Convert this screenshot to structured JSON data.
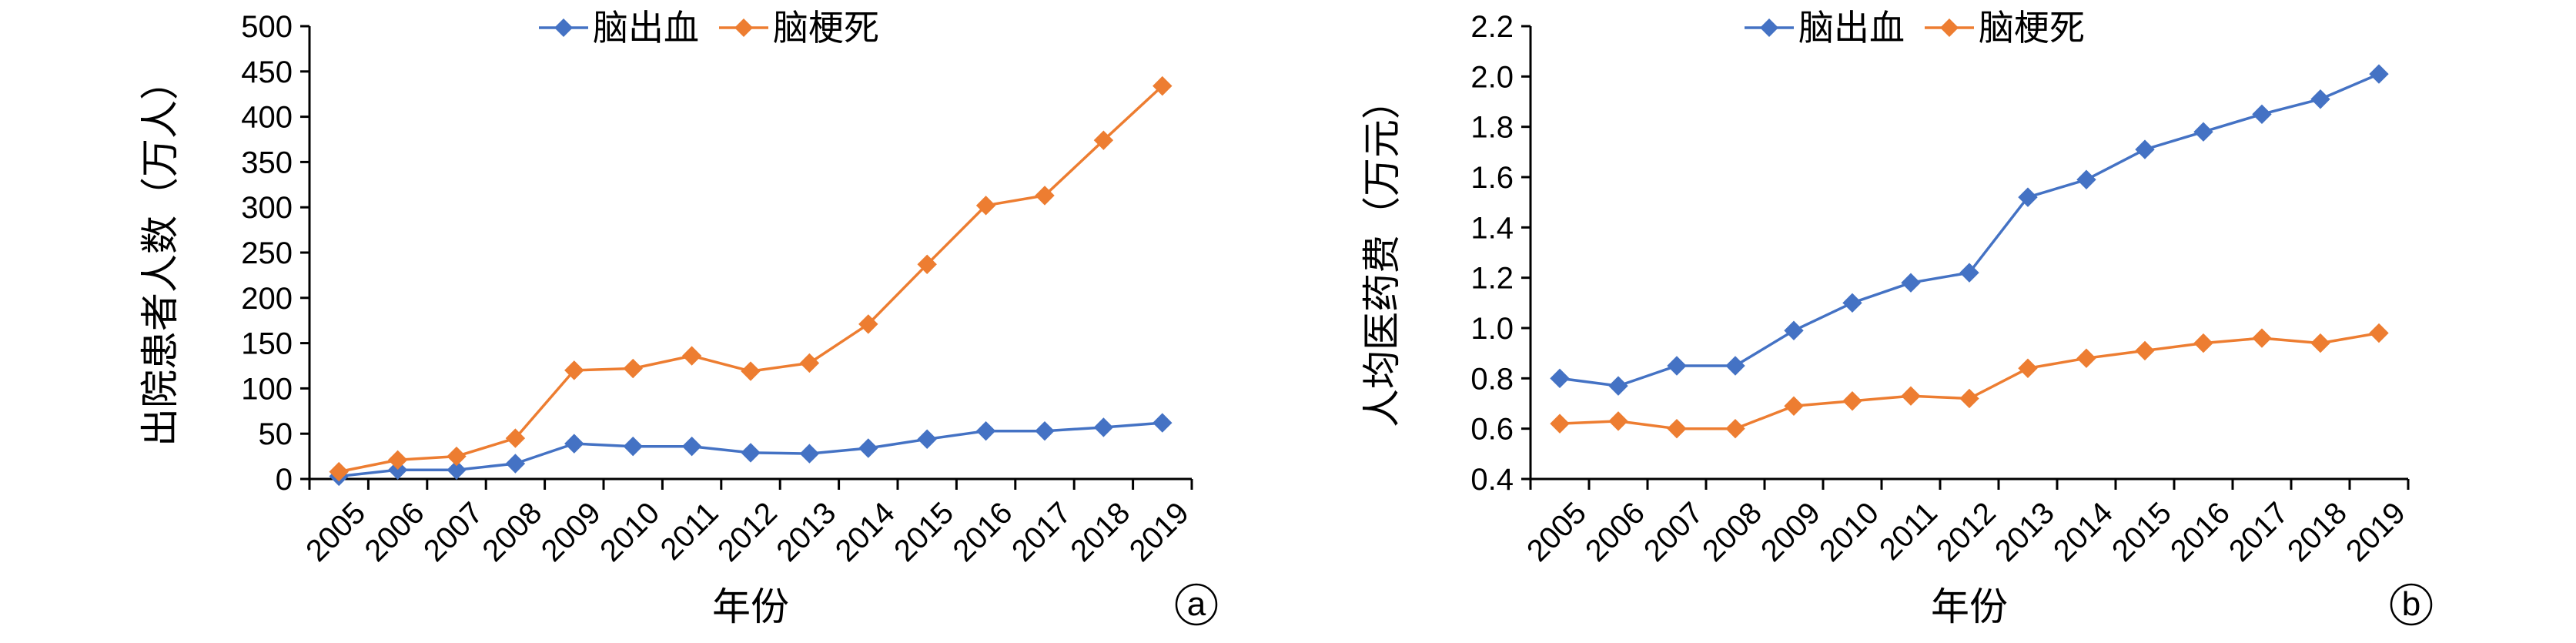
{
  "colors": {
    "series_blue": "#4472C4",
    "series_orange": "#ED7D31",
    "axis": "#000000"
  },
  "chart_data": [
    {
      "type": "line",
      "panel_label": "a",
      "xlabel": "年份",
      "ylabel": "出院患者人数（万人）",
      "categories": [
        "2005",
        "2006",
        "2007",
        "2008",
        "2009",
        "2010",
        "2011",
        "2012",
        "2013",
        "2014",
        "2015",
        "2016",
        "2017",
        "2018",
        "2019"
      ],
      "ylim": [
        0,
        500
      ],
      "yticks": [
        "0",
        "50",
        "100",
        "150",
        "200",
        "250",
        "300",
        "350",
        "400",
        "450",
        "500"
      ],
      "legend_position": "top-center",
      "grid": false,
      "series": [
        {
          "name": "脑出血",
          "color": "#4472C4",
          "marker": "diamond",
          "values": [
            3,
            10,
            10,
            17,
            39,
            36,
            36,
            29,
            28,
            34,
            44,
            53,
            53,
            57,
            62
          ]
        },
        {
          "name": "脑梗死",
          "color": "#ED7D31",
          "marker": "diamond",
          "values": [
            8,
            21,
            25,
            45,
            120,
            122,
            136,
            119,
            128,
            171,
            237,
            302,
            313,
            374,
            434
          ]
        }
      ]
    },
    {
      "type": "line",
      "panel_label": "b",
      "xlabel": "年份",
      "ylabel": "人均医药费（万元）",
      "categories": [
        "2005",
        "2006",
        "2007",
        "2008",
        "2009",
        "2010",
        "2011",
        "2012",
        "2013",
        "2014",
        "2015",
        "2016",
        "2017",
        "2018",
        "2019"
      ],
      "ylim": [
        0.4,
        2.2
      ],
      "yticks": [
        "0.4",
        "0.6",
        "0.8",
        "1.0",
        "1.2",
        "1.4",
        "1.6",
        "1.8",
        "2.0",
        "2.2"
      ],
      "legend_position": "top-center",
      "grid": false,
      "series": [
        {
          "name": "脑出血",
          "color": "#4472C4",
          "marker": "diamond",
          "values": [
            0.8,
            0.77,
            0.85,
            0.85,
            0.99,
            1.1,
            1.18,
            1.22,
            1.52,
            1.59,
            1.71,
            1.78,
            1.85,
            1.91,
            2.01
          ]
        },
        {
          "name": "脑梗死",
          "color": "#ED7D31",
          "marker": "diamond",
          "values": [
            0.62,
            0.63,
            0.6,
            0.6,
            0.69,
            0.71,
            0.73,
            0.72,
            0.84,
            0.88,
            0.91,
            0.94,
            0.96,
            0.94,
            0.98
          ]
        }
      ]
    }
  ]
}
